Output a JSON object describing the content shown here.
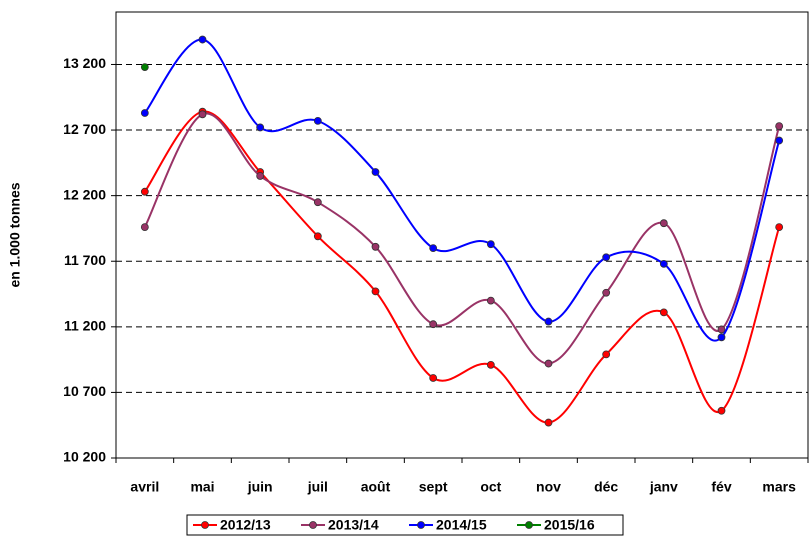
{
  "chart_data": {
    "type": "line",
    "y_label": "en 1.000 tonnes",
    "categories": [
      "avril",
      "mai",
      "juin",
      "juil",
      "août",
      "sept",
      "oct",
      "nov",
      "déc",
      "janv",
      "fév",
      "mars"
    ],
    "series": [
      {
        "name": "2012/13",
        "color": "#ff0000",
        "values": [
          12230,
          12840,
          12380,
          11890,
          11470,
          10810,
          10910,
          10470,
          10990,
          11310,
          10560,
          11960
        ]
      },
      {
        "name": "2013/14",
        "color": "#993366",
        "values": [
          11960,
          12820,
          12350,
          12150,
          11810,
          11220,
          11400,
          10920,
          11460,
          11990,
          11180,
          12730
        ]
      },
      {
        "name": "2014/15",
        "color": "#0000ff",
        "values": [
          12830,
          13390,
          12720,
          12770,
          12380,
          11800,
          11830,
          11240,
          11730,
          11680,
          11120,
          12620
        ]
      },
      {
        "name": "2015/16",
        "color": "#008000",
        "values": [
          13180,
          null,
          null,
          null,
          null,
          null,
          null,
          null,
          null,
          null,
          null,
          null
        ]
      }
    ],
    "ylim": [
      10200,
      13600
    ],
    "yticks": [
      {
        "value": 10200,
        "label": "10 200"
      },
      {
        "value": 10700,
        "label": "10 700"
      },
      {
        "value": 11200,
        "label": "11 200"
      },
      {
        "value": 11700,
        "label": "11 700"
      },
      {
        "value": 12200,
        "label": "12 200"
      },
      {
        "value": 12700,
        "label": "12 700"
      },
      {
        "value": 13200,
        "label": "13 200"
      }
    ],
    "grid": true,
    "legend": "bottom"
  }
}
